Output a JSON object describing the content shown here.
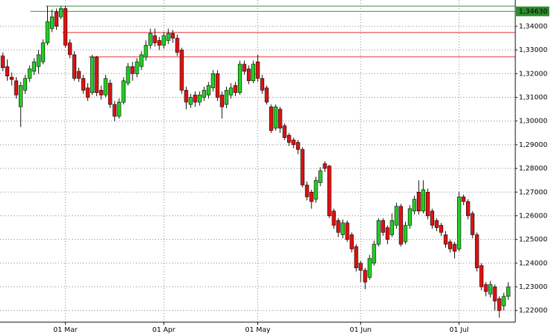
{
  "chart_data": {
    "type": "candlestick",
    "categories": [
      null,
      null,
      null,
      null,
      null,
      null,
      null,
      null,
      null,
      null,
      null,
      null,
      null,
      null,
      "01 Mar",
      null,
      null,
      null,
      null,
      null,
      null,
      null,
      null,
      null,
      null,
      null,
      null,
      null,
      null,
      null,
      null,
      null,
      null,
      null,
      null,
      null,
      "01 Apr",
      null,
      null,
      null,
      null,
      null,
      null,
      null,
      null,
      null,
      null,
      null,
      null,
      null,
      null,
      null,
      null,
      null,
      null,
      null,
      null,
      "01 May",
      null,
      null,
      null,
      null,
      null,
      null,
      null,
      null,
      null,
      null,
      null,
      null,
      null,
      null,
      null,
      null,
      null,
      null,
      null,
      null,
      null,
      null,
      "01 Jun",
      null,
      null,
      null,
      null,
      null,
      null,
      null,
      null,
      null,
      null,
      null,
      null,
      null,
      null,
      null,
      null,
      null,
      null,
      null,
      null,
      null,
      "01 Jul",
      null,
      null,
      null,
      null,
      null,
      null,
      null,
      null,
      null,
      null,
      null
    ],
    "open": [
      1.3275,
      1.323,
      1.3185,
      1.317,
      1.306,
      1.313,
      1.318,
      1.321,
      1.323,
      1.325,
      1.333,
      1.339,
      1.346,
      1.344,
      1.3475,
      1.333,
      1.328,
      1.321,
      1.318,
      1.314,
      1.312,
      1.327,
      1.313,
      1.311,
      1.316,
      1.307,
      1.302,
      1.308,
      1.316,
      1.323,
      1.32,
      1.323,
      1.327,
      1.332,
      1.336,
      1.334,
      1.332,
      1.334,
      1.337,
      1.335,
      1.33,
      1.313,
      1.307,
      1.311,
      1.308,
      1.31,
      1.311,
      1.314,
      1.32,
      1.311,
      1.307,
      1.311,
      1.315,
      1.312,
      1.324,
      1.322,
      1.317,
      1.325,
      1.318,
      1.314,
      1.306,
      1.297,
      1.305,
      1.298,
      1.294,
      1.292,
      1.291,
      1.288,
      1.273,
      1.27,
      1.267,
      1.274,
      1.282,
      1.281,
      1.262,
      1.258,
      1.252,
      1.257,
      1.252,
      1.247,
      1.24,
      1.237,
      1.234,
      1.24,
      1.248,
      1.258,
      1.255,
      1.252,
      1.256,
      1.264,
      1.249,
      1.256,
      1.262,
      1.27,
      1.262,
      1.27,
      1.262,
      1.258,
      1.256,
      1.252,
      1.249,
      1.248,
      1.246,
      1.268,
      1.266,
      1.261,
      1.252,
      1.239,
      1.231,
      1.227,
      1.23,
      1.225,
      1.222,
      1.226
    ],
    "high": [
      1.329,
      1.326,
      1.3205,
      1.3185,
      1.3165,
      1.3195,
      1.3235,
      1.3265,
      1.33,
      1.3345,
      1.3485,
      1.347,
      1.3475,
      1.3485,
      1.3485,
      1.3345,
      1.3295,
      1.3225,
      1.3195,
      1.316,
      1.328,
      1.3275,
      1.315,
      1.3195,
      1.3175,
      1.3085,
      1.3095,
      1.3185,
      1.3245,
      1.325,
      1.3265,
      1.3295,
      1.334,
      1.339,
      1.339,
      1.3355,
      1.3375,
      1.339,
      1.3385,
      1.3365,
      1.331,
      1.3145,
      1.3115,
      1.3125,
      1.3125,
      1.3145,
      1.3165,
      1.3215,
      1.3215,
      1.3125,
      1.3145,
      1.316,
      1.3165,
      1.3255,
      1.3255,
      1.3235,
      1.3255,
      1.328,
      1.3195,
      1.315,
      1.307,
      1.307,
      1.306,
      1.299,
      1.295,
      1.293,
      1.292,
      1.289,
      1.2745,
      1.271,
      1.2765,
      1.2805,
      1.283,
      1.2815,
      1.263,
      1.259,
      1.2585,
      1.258,
      1.253,
      1.248,
      1.241,
      1.238,
      1.2435,
      1.2495,
      1.259,
      1.259,
      1.256,
      1.261,
      1.2655,
      1.265,
      1.2575,
      1.2645,
      1.2685,
      1.275,
      1.275,
      1.2715,
      1.263,
      1.259,
      1.257,
      1.2535,
      1.25,
      1.249,
      1.27,
      1.269,
      1.267,
      1.262,
      1.253,
      1.24,
      1.232,
      1.2325,
      1.231,
      1.226,
      1.2275,
      1.232
    ],
    "low": [
      1.321,
      1.317,
      1.315,
      1.3095,
      1.2975,
      1.3115,
      1.3165,
      1.3195,
      1.32,
      1.324,
      1.332,
      1.3375,
      1.3385,
      1.343,
      1.331,
      1.3265,
      1.317,
      1.3165,
      1.3115,
      1.3085,
      1.311,
      1.3105,
      1.309,
      1.31,
      1.3055,
      1.3,
      1.301,
      1.307,
      1.315,
      1.317,
      1.3185,
      1.3215,
      1.3255,
      1.3305,
      1.3315,
      1.33,
      1.3305,
      1.3325,
      1.333,
      1.3275,
      1.3115,
      1.305,
      1.3055,
      1.306,
      1.3065,
      1.3085,
      1.3095,
      1.3125,
      1.3085,
      1.301,
      1.3055,
      1.3095,
      1.3105,
      1.311,
      1.3195,
      1.3155,
      1.316,
      1.3165,
      1.3115,
      1.307,
      1.295,
      1.296,
      1.295,
      1.292,
      1.2895,
      1.2885,
      1.286,
      1.272,
      1.2665,
      1.263,
      1.2655,
      1.2725,
      1.2785,
      1.259,
      1.2545,
      1.251,
      1.2505,
      1.249,
      1.2445,
      1.2365,
      1.232,
      1.229,
      1.233,
      1.239,
      1.247,
      1.2515,
      1.248,
      1.251,
      1.2545,
      1.247,
      1.248,
      1.2545,
      1.2605,
      1.2605,
      1.261,
      1.2585,
      1.2545,
      1.2535,
      1.2515,
      1.2465,
      1.2445,
      1.242,
      1.245,
      1.2645,
      1.2585,
      1.2505,
      1.2365,
      1.2285,
      1.226,
      1.2255,
      1.22,
      1.217,
      1.22,
      1.2245
    ],
    "close": [
      1.3225,
      1.319,
      1.3175,
      1.311,
      1.315,
      1.318,
      1.322,
      1.325,
      1.328,
      1.333,
      1.342,
      1.344,
      1.34,
      1.3475,
      1.332,
      1.328,
      1.318,
      1.318,
      1.313,
      1.31,
      1.327,
      1.312,
      1.311,
      1.318,
      1.307,
      1.302,
      1.308,
      1.317,
      1.323,
      1.32,
      1.325,
      1.328,
      1.332,
      1.337,
      1.333,
      1.332,
      1.336,
      1.337,
      1.335,
      1.329,
      1.313,
      1.308,
      1.31,
      1.308,
      1.311,
      1.313,
      1.315,
      1.32,
      1.31,
      1.306,
      1.313,
      1.314,
      1.312,
      1.324,
      1.321,
      1.317,
      1.324,
      1.318,
      1.313,
      1.308,
      1.296,
      1.306,
      1.297,
      1.293,
      1.291,
      1.29,
      1.288,
      1.273,
      1.268,
      1.266,
      1.275,
      1.279,
      1.28,
      1.26,
      1.256,
      1.253,
      1.257,
      1.25,
      1.246,
      1.238,
      1.237,
      1.232,
      1.242,
      1.248,
      1.258,
      1.253,
      1.25,
      1.258,
      1.264,
      1.248,
      1.256,
      1.263,
      1.267,
      1.262,
      1.271,
      1.26,
      1.256,
      1.255,
      1.253,
      1.248,
      1.246,
      1.245,
      1.268,
      1.266,
      1.26,
      1.252,
      1.238,
      1.23,
      1.228,
      1.231,
      1.224,
      1.22,
      1.226,
      1.23
    ],
    "up_color": "#22cc22",
    "down_color": "#dd1111",
    "ylim": [
      1.2151,
      1.3511
    ],
    "yticks": [
      {
        "value": 1.22,
        "label": "1,22000"
      },
      {
        "value": 1.23,
        "label": "1,23000"
      },
      {
        "value": 1.24,
        "label": "1,24000"
      },
      {
        "value": 1.25,
        "label": "1,25000"
      },
      {
        "value": 1.26,
        "label": "1,26000"
      },
      {
        "value": 1.27,
        "label": "1,27000"
      },
      {
        "value": 1.28,
        "label": "1,28000"
      },
      {
        "value": 1.29,
        "label": "1,29000"
      },
      {
        "value": 1.3,
        "label": "1,30000"
      },
      {
        "value": 1.31,
        "label": "1,31000"
      },
      {
        "value": 1.32,
        "label": "1,32000"
      },
      {
        "value": 1.33,
        "label": "1,33000"
      },
      {
        "value": 1.34,
        "label": "1,34000"
      }
    ],
    "hlines": [
      {
        "value": 1.3485,
        "color": "#2e8b2e"
      },
      {
        "value": 1.3463,
        "color": "#2e8b2e"
      },
      {
        "value": 1.3374,
        "color": "#e02020"
      },
      {
        "value": 1.3271,
        "color": "#e02020"
      }
    ],
    "price_label": {
      "value": 1.3463,
      "label": "1,34630",
      "color": "#2e8b2e"
    },
    "grid": true
  }
}
